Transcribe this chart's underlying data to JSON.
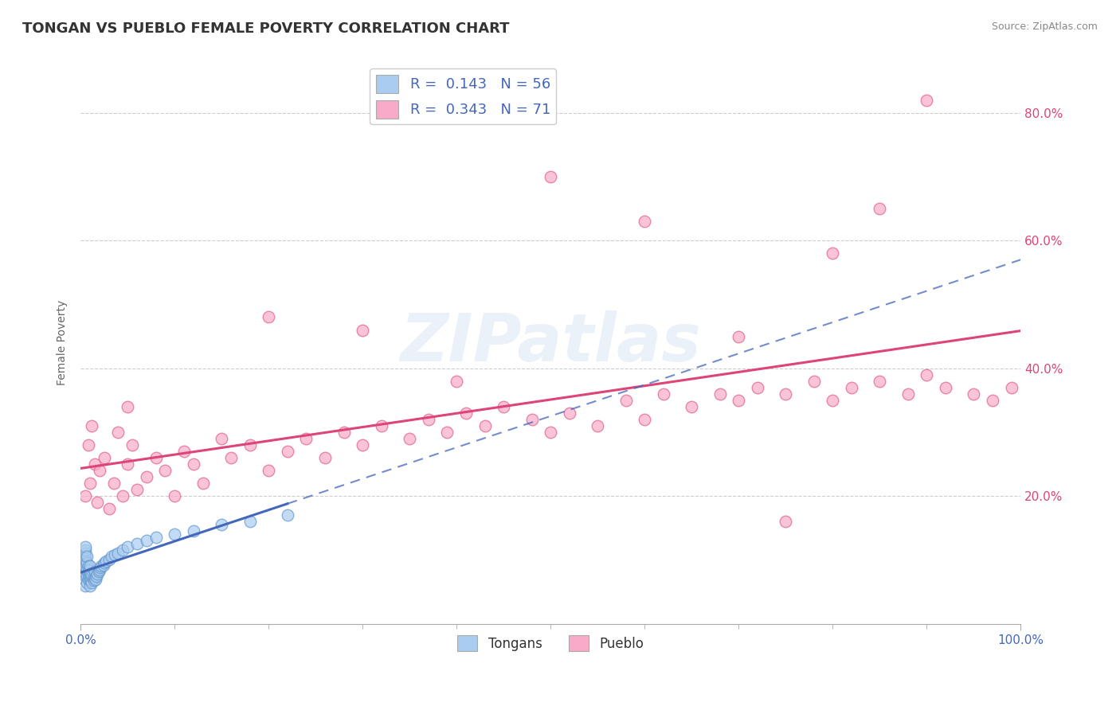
{
  "title": "TONGAN VS PUEBLO FEMALE POVERTY CORRELATION CHART",
  "source_text": "Source: ZipAtlas.com",
  "ylabel": "Female Poverty",
  "xlim": [
    0.0,
    1.0
  ],
  "ylim": [
    0.0,
    0.88
  ],
  "yticks": [
    0.2,
    0.4,
    0.6,
    0.8
  ],
  "ytick_labels": [
    "20.0%",
    "40.0%",
    "60.0%",
    "80.0%"
  ],
  "xtick_minor": [
    0.1,
    0.2,
    0.3,
    0.4,
    0.5,
    0.6,
    0.7,
    0.8,
    0.9
  ],
  "legend_entries": [
    {
      "label": "Tongans",
      "color": "#aaccf0",
      "edge": "#6699cc",
      "R": 0.143,
      "N": 56
    },
    {
      "label": "Pueblo",
      "color": "#f8aac8",
      "edge": "#e06090",
      "R": 0.343,
      "N": 71
    }
  ],
  "tongan_line_color": "#4466bb",
  "pueblo_line_color": "#dd4477",
  "background_color": "#ffffff",
  "grid_color": "#cccccc",
  "watermark": "ZIPatlas",
  "title_fontsize": 13,
  "axis_label_fontsize": 10,
  "tick_fontsize": 11,
  "legend_fontsize": 13,
  "tongan_scatter": {
    "x": [
      0.005,
      0.005,
      0.005,
      0.005,
      0.005,
      0.005,
      0.005,
      0.005,
      0.005,
      0.005,
      0.007,
      0.007,
      0.007,
      0.007,
      0.007,
      0.008,
      0.008,
      0.008,
      0.009,
      0.009,
      0.01,
      0.01,
      0.01,
      0.01,
      0.011,
      0.011,
      0.012,
      0.012,
      0.013,
      0.014,
      0.015,
      0.015,
      0.016,
      0.017,
      0.018,
      0.019,
      0.02,
      0.021,
      0.022,
      0.024,
      0.025,
      0.027,
      0.03,
      0.033,
      0.036,
      0.04,
      0.045,
      0.05,
      0.06,
      0.07,
      0.08,
      0.1,
      0.12,
      0.15,
      0.18,
      0.22
    ],
    "y": [
      0.06,
      0.075,
      0.08,
      0.09,
      0.095,
      0.1,
      0.105,
      0.11,
      0.115,
      0.12,
      0.065,
      0.075,
      0.085,
      0.095,
      0.105,
      0.07,
      0.08,
      0.09,
      0.075,
      0.085,
      0.06,
      0.07,
      0.08,
      0.09,
      0.068,
      0.078,
      0.065,
      0.075,
      0.072,
      0.068,
      0.072,
      0.082,
      0.07,
      0.075,
      0.078,
      0.082,
      0.085,
      0.088,
      0.09,
      0.092,
      0.095,
      0.098,
      0.1,
      0.105,
      0.108,
      0.11,
      0.115,
      0.12,
      0.125,
      0.13,
      0.135,
      0.14,
      0.145,
      0.155,
      0.16,
      0.17
    ]
  },
  "pueblo_scatter": {
    "x": [
      0.005,
      0.008,
      0.01,
      0.012,
      0.015,
      0.018,
      0.02,
      0.025,
      0.03,
      0.035,
      0.04,
      0.045,
      0.05,
      0.055,
      0.06,
      0.07,
      0.08,
      0.09,
      0.1,
      0.11,
      0.12,
      0.13,
      0.15,
      0.16,
      0.18,
      0.2,
      0.22,
      0.24,
      0.26,
      0.28,
      0.3,
      0.32,
      0.35,
      0.37,
      0.39,
      0.41,
      0.43,
      0.45,
      0.48,
      0.5,
      0.52,
      0.55,
      0.58,
      0.6,
      0.62,
      0.65,
      0.68,
      0.7,
      0.72,
      0.75,
      0.78,
      0.8,
      0.82,
      0.85,
      0.88,
      0.9,
      0.92,
      0.95,
      0.97,
      0.99,
      0.3,
      0.4,
      0.5,
      0.2,
      0.6,
      0.7,
      0.8,
      0.9,
      0.05,
      0.75,
      0.85
    ],
    "y": [
      0.2,
      0.28,
      0.22,
      0.31,
      0.25,
      0.19,
      0.24,
      0.26,
      0.18,
      0.22,
      0.3,
      0.2,
      0.25,
      0.28,
      0.21,
      0.23,
      0.26,
      0.24,
      0.2,
      0.27,
      0.25,
      0.22,
      0.29,
      0.26,
      0.28,
      0.24,
      0.27,
      0.29,
      0.26,
      0.3,
      0.28,
      0.31,
      0.29,
      0.32,
      0.3,
      0.33,
      0.31,
      0.34,
      0.32,
      0.3,
      0.33,
      0.31,
      0.35,
      0.32,
      0.36,
      0.34,
      0.36,
      0.35,
      0.37,
      0.36,
      0.38,
      0.35,
      0.37,
      0.38,
      0.36,
      0.39,
      0.37,
      0.36,
      0.35,
      0.37,
      0.46,
      0.38,
      0.7,
      0.48,
      0.63,
      0.45,
      0.58,
      0.82,
      0.34,
      0.16,
      0.65
    ]
  }
}
